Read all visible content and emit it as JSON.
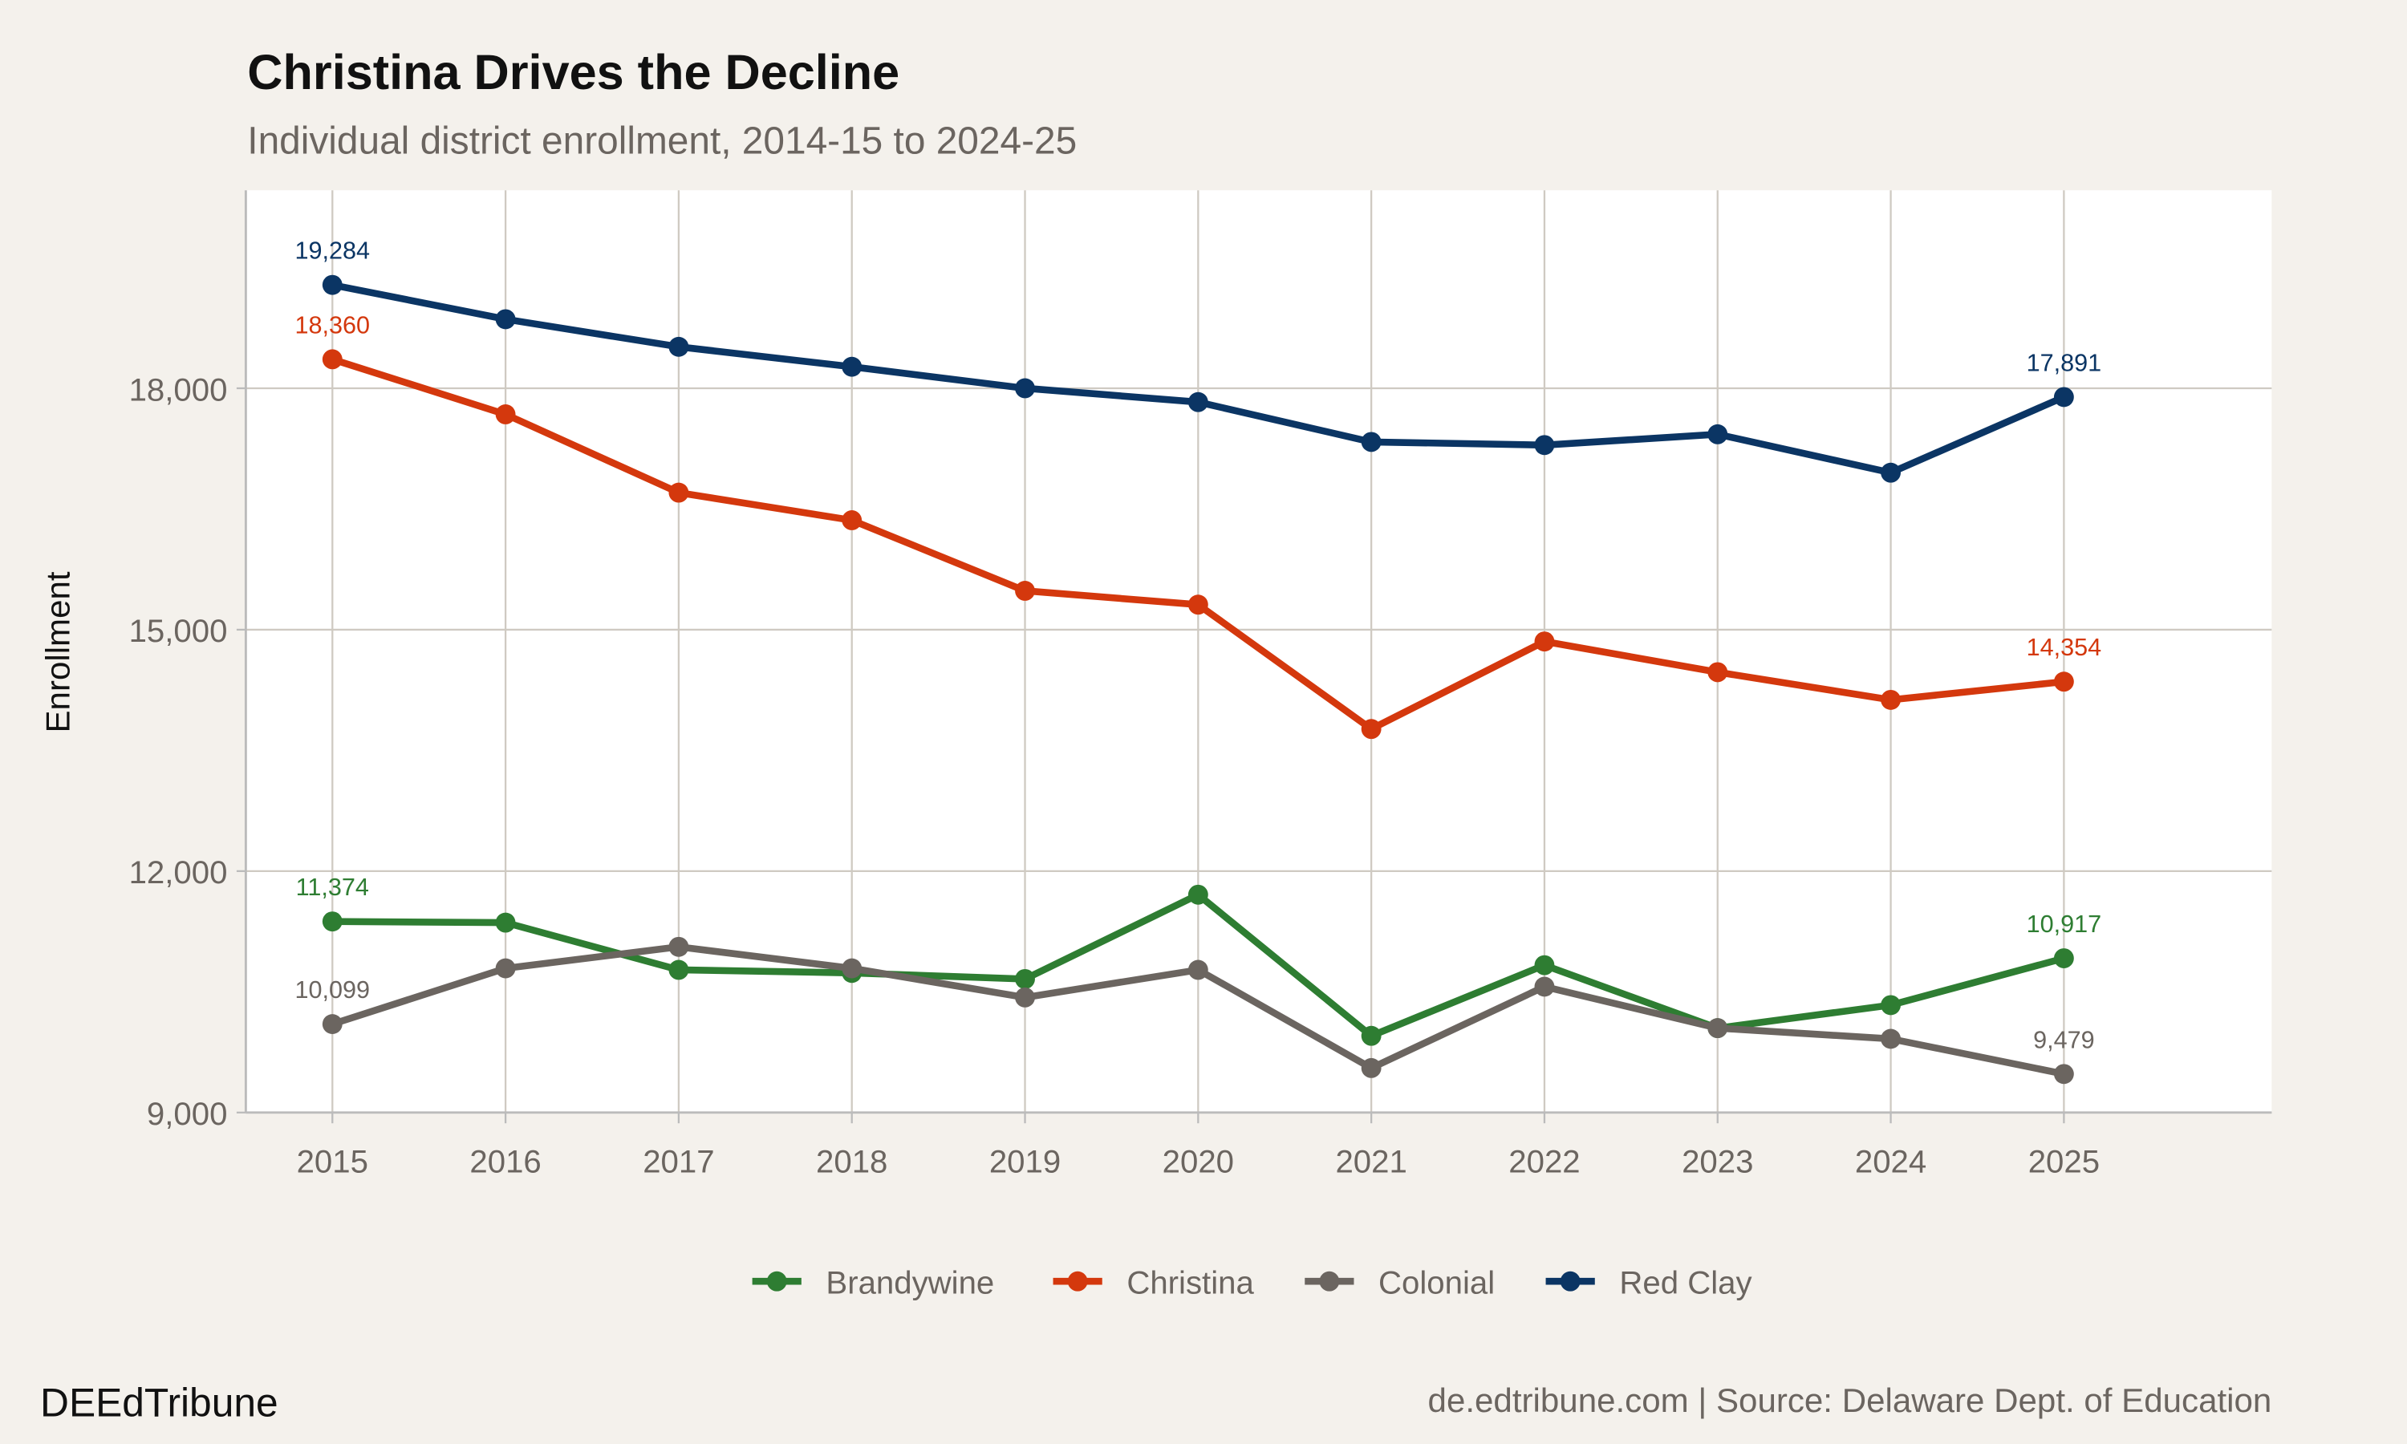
{
  "chart_data": {
    "type": "line",
    "title": "Christina Drives the Decline",
    "subtitle": "Individual district enrollment, 2014-15 to 2024-25",
    "xlabel": "",
    "ylabel": "Enrollment",
    "x": [
      2015,
      2016,
      2017,
      2018,
      2019,
      2020,
      2021,
      2022,
      2023,
      2024,
      2025
    ],
    "xlim": [
      2014.5,
      2026.2
    ],
    "ylim": [
      9000,
      20460
    ],
    "yticks": [
      9000,
      12000,
      15000,
      18000
    ],
    "ytick_labels": [
      "9,000",
      "12,000",
      "15,000",
      "18,000"
    ],
    "xtick_labels": [
      "2015",
      "2016",
      "2017",
      "2018",
      "2019",
      "2020",
      "2021",
      "2022",
      "2023",
      "2024",
      "2025"
    ],
    "grid": true,
    "legend_position": "bottom",
    "series": [
      {
        "name": "Brandywine",
        "color": "#2e7d32",
        "values": [
          11374,
          11360,
          10773,
          10735,
          10659,
          11707,
          9953,
          10831,
          10049,
          10335,
          10917
        ],
        "labels": {
          "first": "11,374",
          "last": "10,917"
        }
      },
      {
        "name": "Christina",
        "color": "#d4380d",
        "values": [
          18360,
          17676,
          16703,
          16360,
          15483,
          15311,
          13766,
          14853,
          14472,
          14128,
          14354
        ],
        "labels": {
          "first": "18,360",
          "last": "14,354"
        }
      },
      {
        "name": "Colonial",
        "color": "#6b6560",
        "values": [
          10099,
          10792,
          11059,
          10792,
          10430,
          10773,
          9553,
          10564,
          10049,
          9916,
          9479
        ],
        "labels": {
          "first": "10,099",
          "last": "9,479"
        }
      },
      {
        "name": "Red Clay",
        "color": "#0b3564",
        "values": [
          19284,
          18858,
          18515,
          18267,
          18000,
          17828,
          17333,
          17294,
          17428,
          16951,
          17891
        ],
        "labels": {
          "first": "19,284",
          "last": "17,891"
        }
      }
    ]
  },
  "footer": {
    "brand": "DEEdTribune",
    "source": "de.edtribune.com | Source: Delaware Dept. of Education"
  }
}
